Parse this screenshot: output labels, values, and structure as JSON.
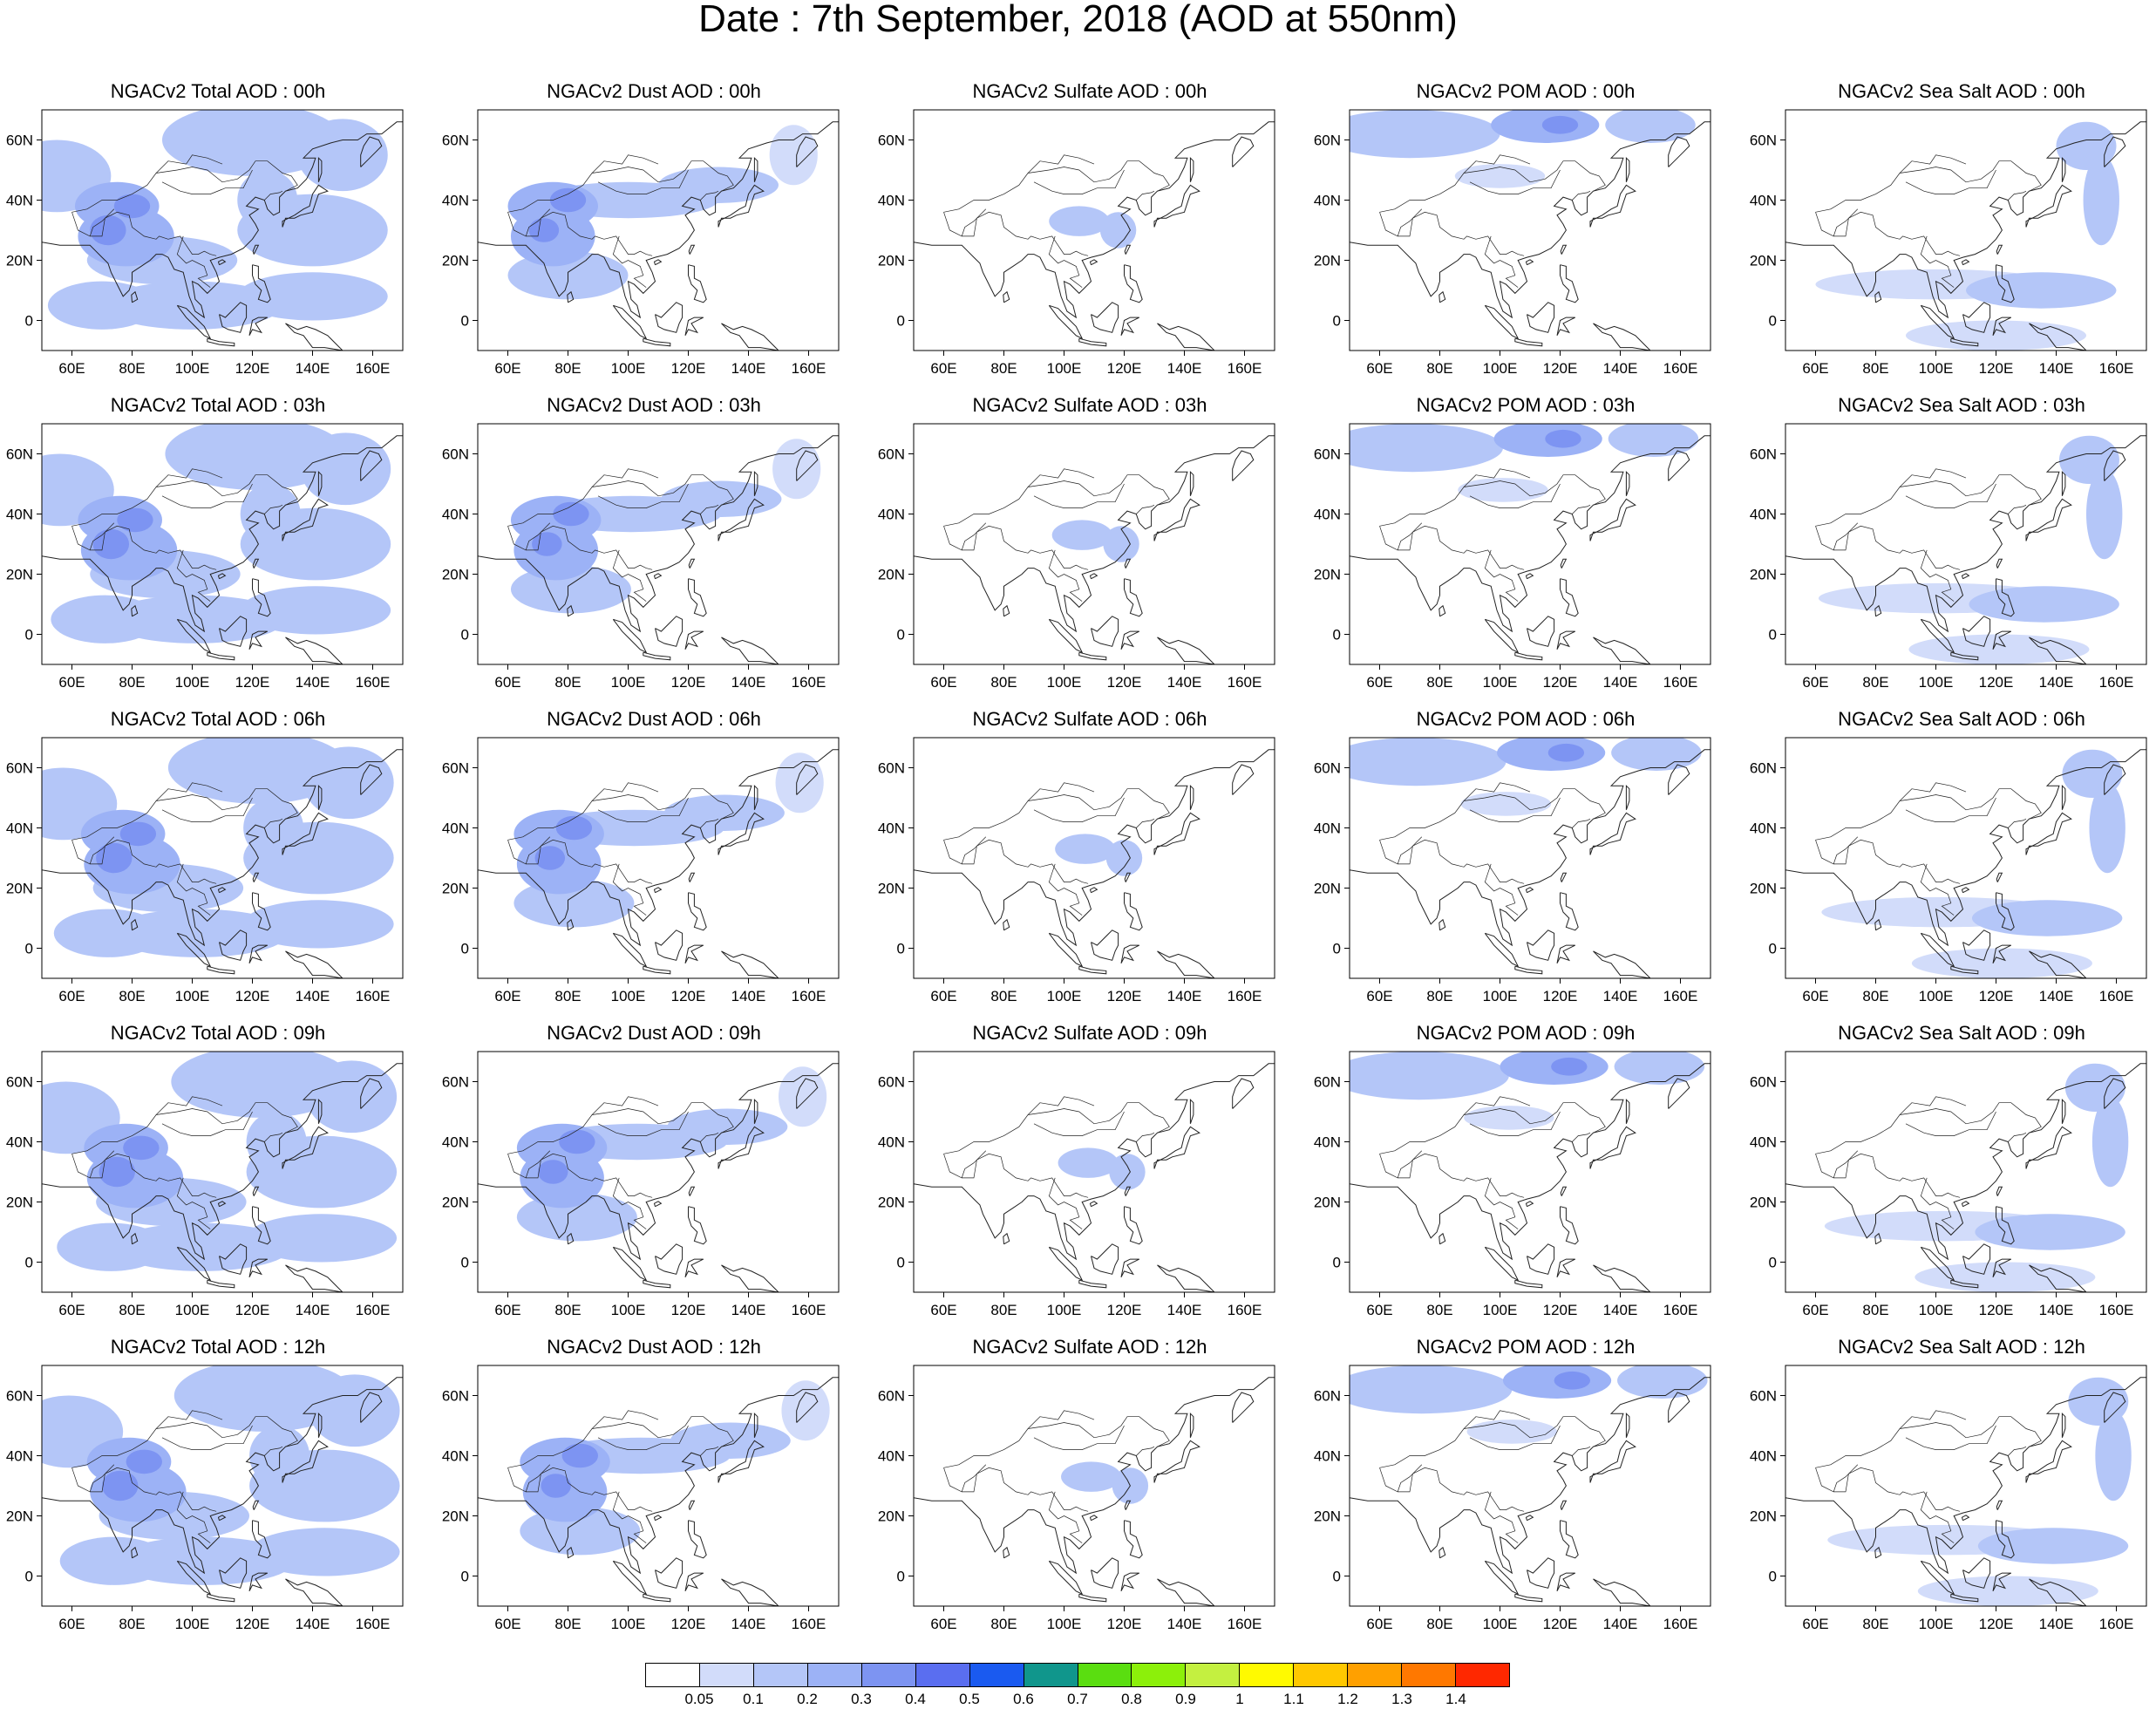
{
  "main_title": "Date : 7th September, 2018 (AOD at 550nm)",
  "panels": [
    [
      "NGACv2 Total AOD : 00h",
      "NGACv2 Dust AOD : 00h",
      "NGACv2 Sulfate AOD : 00h",
      "NGACv2 POM AOD : 00h",
      "NGACv2 Sea Salt AOD : 00h"
    ],
    [
      "NGACv2 Total AOD : 03h",
      "NGACv2 Dust AOD : 03h",
      "NGACv2 Sulfate AOD : 03h",
      "NGACv2 POM AOD : 03h",
      "NGACv2 Sea Salt AOD : 03h"
    ],
    [
      "NGACv2 Total AOD : 06h",
      "NGACv2 Dust AOD : 06h",
      "NGACv2 Sulfate AOD : 06h",
      "NGACv2 POM AOD : 06h",
      "NGACv2 Sea Salt AOD : 06h"
    ],
    [
      "NGACv2 Total AOD : 09h",
      "NGACv2 Dust AOD : 09h",
      "NGACv2 Sulfate AOD : 09h",
      "NGACv2 POM AOD : 09h",
      "NGACv2 Sea Salt  AOD : 09h"
    ],
    [
      "NGACv2 Total AOD  : 12h",
      "NGACv2 Dust AOD : 12h",
      "NGACv2 Sulfate AOD : 12h",
      "NGACv2 POM  AOD : 12h",
      "NGACv2 Sea Salt  AOD : 12h"
    ]
  ],
  "lon_ticks": [
    "60E",
    "80E",
    "100E",
    "120E",
    "140E",
    "160E"
  ],
  "lat_ticks": [
    "60N",
    "40N",
    "20N",
    "0"
  ],
  "colorbar": {
    "labels": [
      "0.05",
      "0.1",
      "0.2",
      "0.3",
      "0.4",
      "0.5",
      "0.6",
      "0.7",
      "0.8",
      "0.9",
      "1",
      "1.1",
      "1.2",
      "1.3",
      "1.4"
    ],
    "colors": [
      "#ffffff",
      "#d2dcfa",
      "#b4c6f8",
      "#9cb2f6",
      "#7d94f2",
      "#5a6ef0",
      "#1a5af0",
      "#10968c",
      "#5ade10",
      "#8cf00a",
      "#c4f040",
      "#fffa00",
      "#ffc800",
      "#ffa000",
      "#ff7800",
      "#ff2800"
    ]
  }
}
